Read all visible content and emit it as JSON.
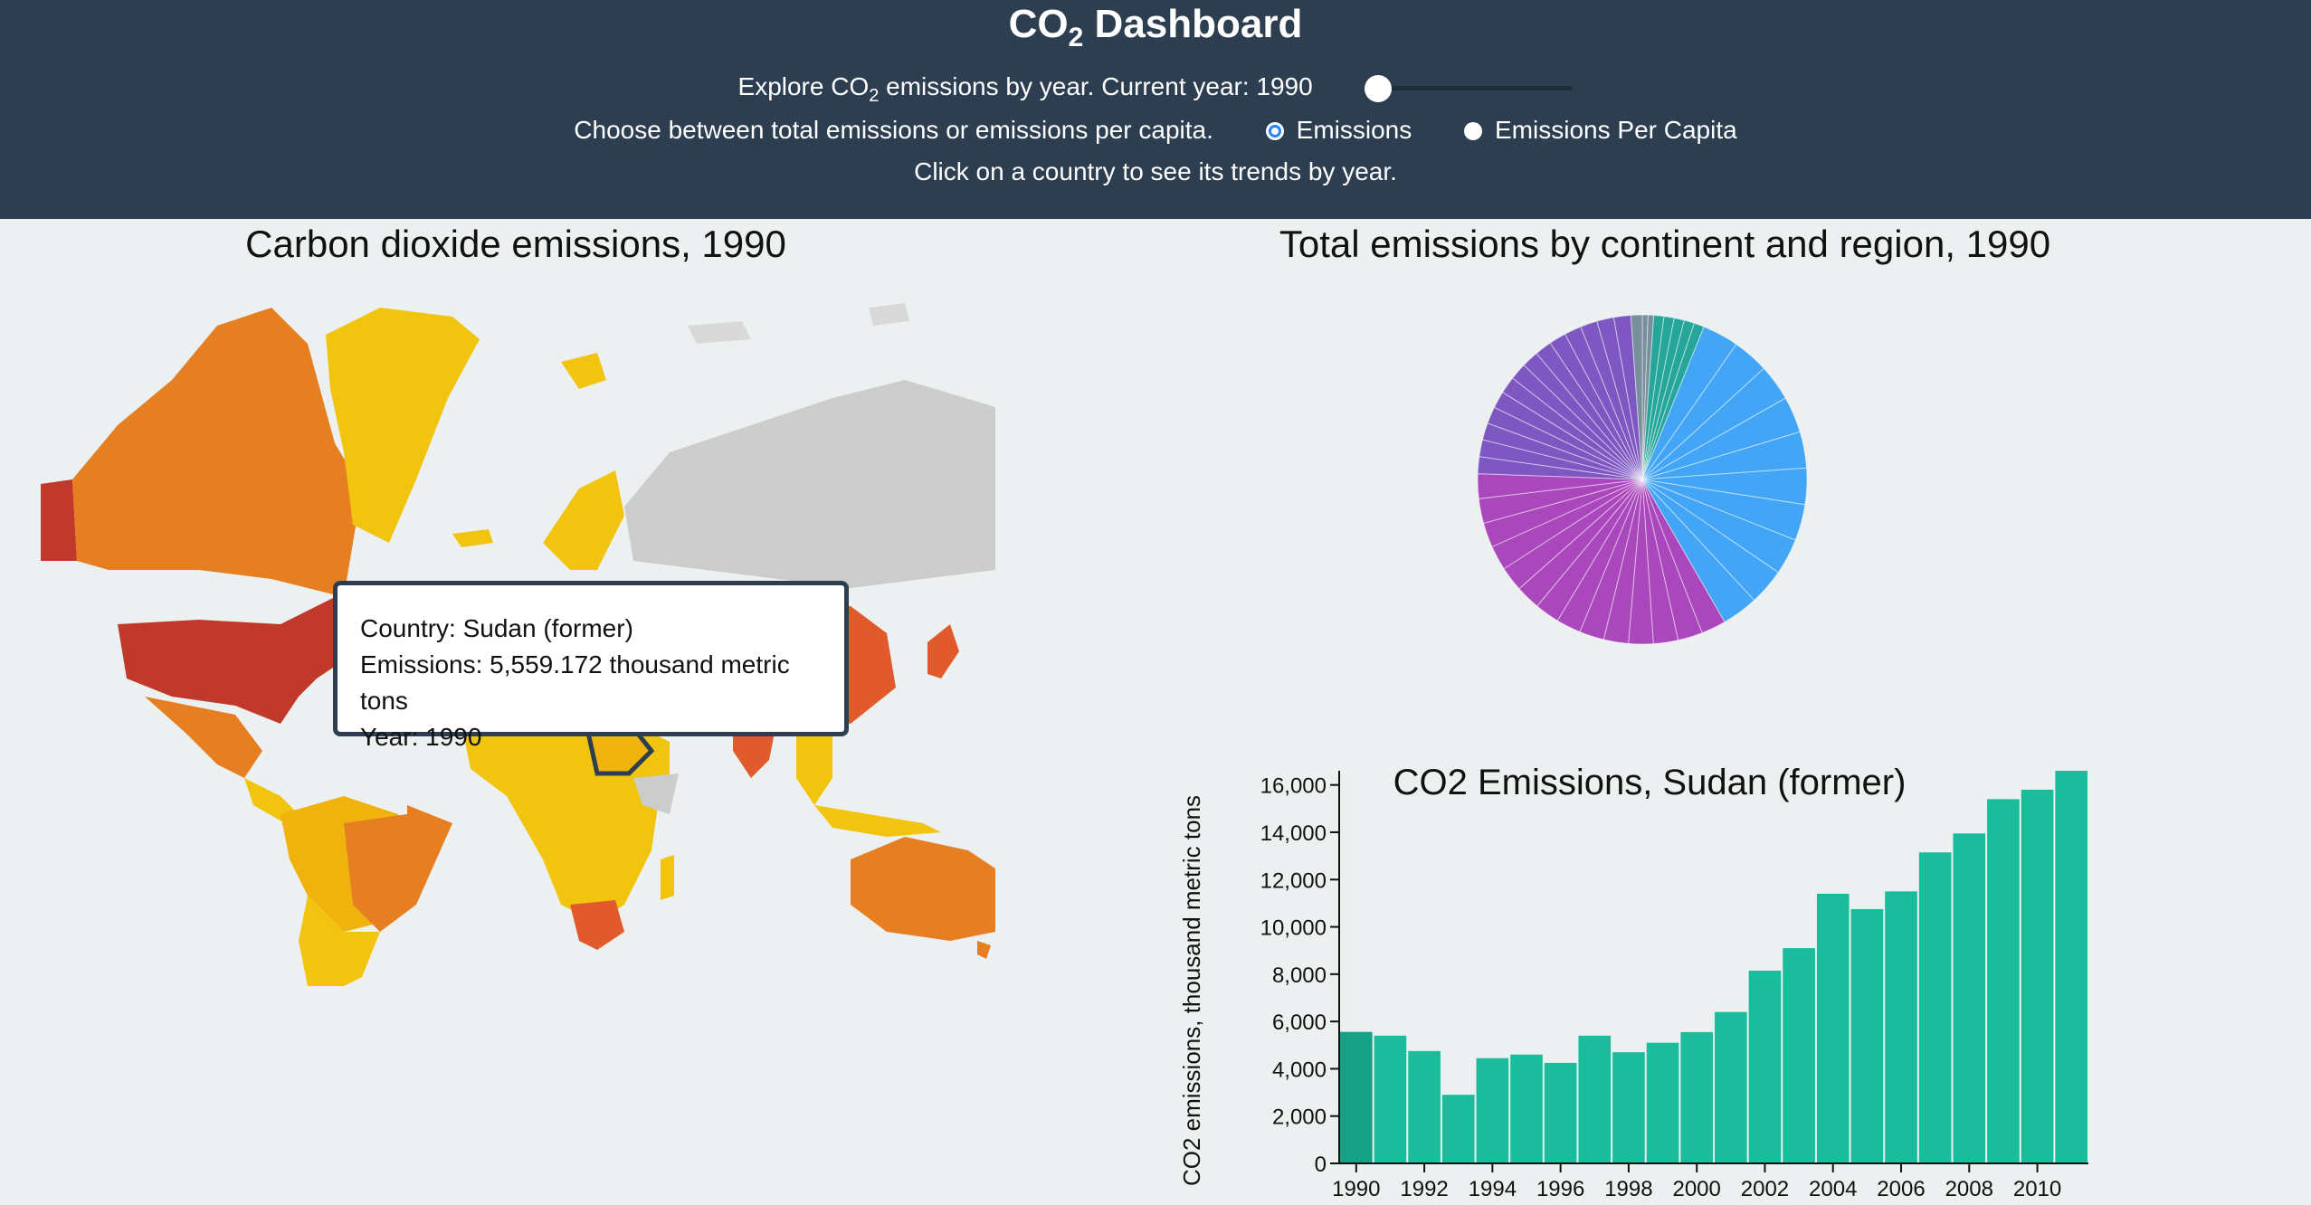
{
  "header": {
    "title_main": "CO",
    "title_sub": "2",
    "title_tail": " Dashboard",
    "explore_a": "Explore CO",
    "explore_sub": "2",
    "explore_b": " emissions by year. Current year: 1990",
    "choose_text": "Choose between total emissions or emissions per capita.",
    "radio_emissions": "Emissions",
    "radio_per_capita": "Emissions Per Capita",
    "click_hint": "Click on a country to see its trends by year."
  },
  "slider": {
    "value": 1990,
    "min": 1990,
    "max": 2011
  },
  "map": {
    "title": "Carbon dioxide emissions, 1990",
    "colors": {
      "low": "#f1c40f",
      "mid_low": "#f0b30d",
      "mid": "#e67e22",
      "high": "#e05a2b",
      "very_high": "#c0392b",
      "no_data": "#cccccc"
    }
  },
  "tooltip": {
    "country": "Country: Sudan (former)",
    "emissions": "Emissions: 5,559.172 thousand metric tons",
    "year": "Year: 1990"
  },
  "pie": {
    "title": "Total emissions by continent and region, 1990",
    "colors": {
      "Americas": "#42a5f5",
      "Europe": "#ab47bc",
      "Asia": "#7e57c2",
      "Africa": "#26a69a",
      "Oceania": "#78909c"
    }
  },
  "chart_data": {
    "type": "bar",
    "title": "CO2 Emissions, Sudan (former)",
    "xlabel": "",
    "ylabel": "CO2 emissions, thousand metric tons",
    "categories": [
      "1990",
      "1991",
      "1992",
      "1993",
      "1994",
      "1995",
      "1996",
      "1997",
      "1998",
      "1999",
      "2000",
      "2001",
      "2002",
      "2003",
      "2004",
      "2005",
      "2006",
      "2007",
      "2008",
      "2009",
      "2010",
      "2011"
    ],
    "values": [
      5559,
      5400,
      4750,
      2900,
      4450,
      4600,
      4250,
      5400,
      4700,
      5100,
      5550,
      6400,
      8150,
      9100,
      11400,
      10750,
      11500,
      13150,
      13950,
      15400,
      15800,
      16600
    ],
    "ylim": [
      0,
      16600
    ],
    "yticks": [
      "0",
      "2,000",
      "4,000",
      "6,000",
      "8,000",
      "10,000",
      "12,000",
      "14,000",
      "16,000"
    ],
    "xticks": [
      "1990",
      "1992",
      "1994",
      "1996",
      "1998",
      "2000",
      "2002",
      "2004",
      "2006",
      "2008",
      "2010"
    ],
    "bar_color": "#1abc9c",
    "highlight_color": "#16a085"
  }
}
